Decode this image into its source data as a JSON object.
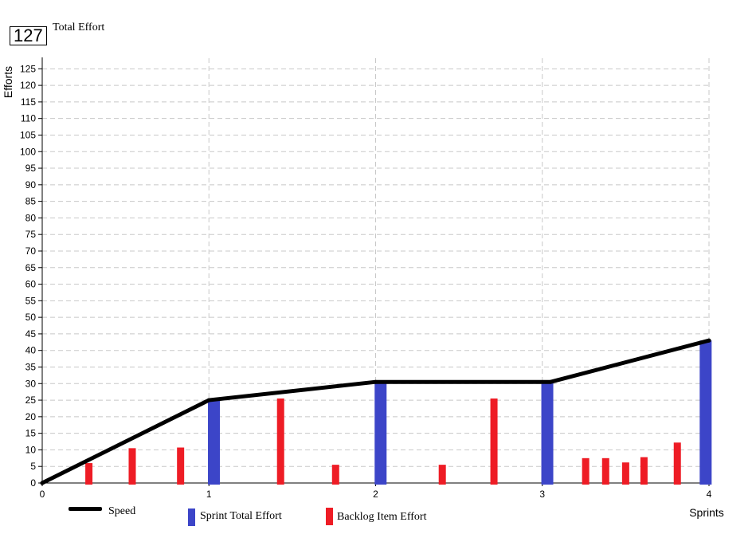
{
  "summary": {
    "total_value": "127",
    "total_label": "Total Effort"
  },
  "legend": {
    "speed": "Speed",
    "sprint_total": "Sprint Total Effort",
    "backlog_item": "Backlog Item Effort"
  },
  "colors": {
    "speed_line": "#000000",
    "sprint_bar": "#3c45c8",
    "backlog_bar": "#ee1c25",
    "grid": "#c8c8c8"
  },
  "chart_data": {
    "type": "bar",
    "title": "",
    "xlabel": "Sprints",
    "ylabel": "Efforts",
    "xlim": [
      0,
      4
    ],
    "ylim": [
      0,
      127
    ],
    "x_ticks": [
      0,
      1,
      2,
      3,
      4
    ],
    "y_ticks": [
      0,
      5,
      10,
      15,
      20,
      25,
      30,
      35,
      40,
      45,
      50,
      55,
      60,
      65,
      70,
      75,
      80,
      85,
      90,
      95,
      100,
      105,
      110,
      115,
      120,
      125
    ],
    "grid": true,
    "legend_position": "bottom",
    "series": [
      {
        "name": "Speed",
        "type": "line",
        "points": [
          {
            "x": 0,
            "y": 0
          },
          {
            "x": 1,
            "y": 25
          },
          {
            "x": 2,
            "y": 30.5
          },
          {
            "x": 3.05,
            "y": 30.5
          },
          {
            "x": 4,
            "y": 43
          }
        ]
      },
      {
        "name": "Sprint Total Effort",
        "type": "bar",
        "points": [
          {
            "x": 1.03,
            "y": 25
          },
          {
            "x": 2.03,
            "y": 30.5
          },
          {
            "x": 3.03,
            "y": 30.5
          },
          {
            "x": 3.98,
            "y": 43
          }
        ]
      },
      {
        "name": "Backlog Item Effort",
        "type": "bar",
        "points": [
          {
            "x": 0.28,
            "y": 6
          },
          {
            "x": 0.54,
            "y": 10.5
          },
          {
            "x": 0.83,
            "y": 10.7
          },
          {
            "x": 1.43,
            "y": 25.5
          },
          {
            "x": 1.76,
            "y": 5.5
          },
          {
            "x": 2.4,
            "y": 5.5
          },
          {
            "x": 2.71,
            "y": 25.5
          },
          {
            "x": 3.26,
            "y": 7.5
          },
          {
            "x": 3.38,
            "y": 7.5
          },
          {
            "x": 3.5,
            "y": 6.2
          },
          {
            "x": 3.61,
            "y": 7.8
          },
          {
            "x": 3.81,
            "y": 12.2
          }
        ]
      }
    ]
  }
}
